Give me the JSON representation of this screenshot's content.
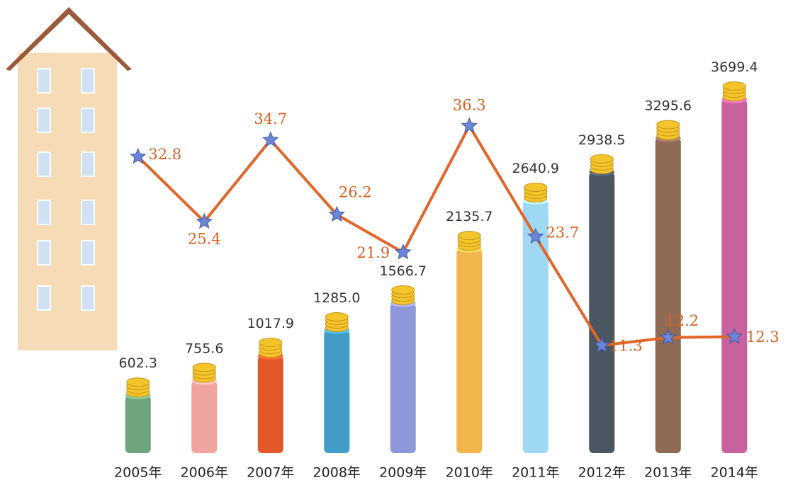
{
  "chart_data": {
    "type": "bar",
    "categories": [
      "2005年",
      "2006年",
      "2007年",
      "2008年",
      "2009年",
      "2010年",
      "2011年",
      "2012年",
      "2013年",
      "2014年"
    ],
    "series": [
      {
        "type": "bar",
        "values": [
          602.3,
          755.6,
          1017.9,
          1285.0,
          1566.7,
          2135.7,
          2640.9,
          2938.5,
          3295.6,
          3699.4
        ],
        "value_labels": [
          "602.3",
          "755.6",
          "1017.9",
          "1285.0",
          "1566.7",
          "2135.7",
          "2640.9",
          "2938.5",
          "3295.6",
          "3699.4"
        ],
        "colors": [
          "#6fa57e",
          "#f1a3a0",
          "#e25a2a",
          "#3f9dc7",
          "#8e97d8",
          "#f2b54c",
          "#9fd8f2",
          "#4a5763",
          "#8f6a55",
          "#c9619e"
        ]
      },
      {
        "type": "line",
        "axis": "y2",
        "color": "#e0662a",
        "values": [
          32.8,
          25.4,
          34.7,
          26.2,
          21.9,
          36.3,
          23.7,
          11.3,
          12.2,
          12.3
        ]
      }
    ],
    "ylim": [
      0,
      4000
    ],
    "y2lim": [
      0,
      40
    ]
  }
}
